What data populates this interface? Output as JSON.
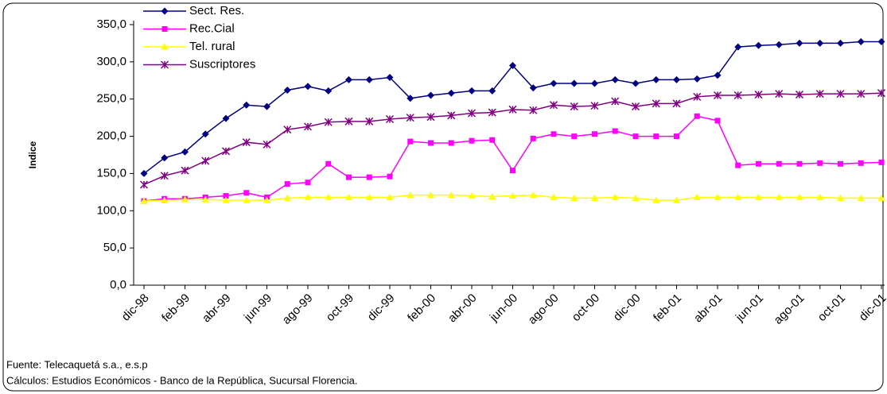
{
  "chart_data": {
    "type": "line",
    "y_label": "Indice",
    "categories": [
      "dic-98",
      null,
      "feb-99",
      null,
      "abr-99",
      null,
      "jun-99",
      null,
      "ago-99",
      null,
      "oct-99",
      null,
      "dic-99",
      null,
      "feb-00",
      null,
      "abr-00",
      null,
      "jun-00",
      null,
      "ago-00",
      null,
      "oct-00",
      null,
      "dic-00",
      null,
      "feb-01",
      null,
      "abr-01",
      null,
      "jun-01",
      null,
      "ago-01",
      null,
      "oct-01",
      null,
      "dic-01"
    ],
    "series": [
      {
        "name": "Sect. Res.",
        "color": "#000080",
        "marker": "diamond",
        "values": [
          150,
          171,
          179,
          203,
          224,
          242,
          240,
          262,
          267,
          261,
          276,
          276,
          279,
          251,
          255,
          258,
          261,
          261,
          295,
          265,
          271,
          271,
          271,
          276,
          271,
          276,
          276,
          277,
          282,
          320,
          322,
          323,
          325,
          325,
          325,
          327,
          327
        ]
      },
      {
        "name": "Rec.Cial",
        "color": "#ff00ff",
        "marker": "square",
        "values": [
          113,
          116,
          116,
          118,
          120,
          124,
          118,
          136,
          138,
          163,
          145,
          145,
          146,
          193,
          191,
          191,
          194,
          195,
          154,
          197,
          203,
          200,
          203,
          207,
          200,
          200,
          200,
          227,
          221,
          161,
          163,
          163,
          163,
          164,
          163,
          164,
          165
        ]
      },
      {
        "name": "Tel. rural",
        "color": "#ffff00",
        "marker": "triangle",
        "values": [
          113,
          114,
          115,
          115,
          114,
          114,
          114,
          117,
          118,
          118,
          118,
          118,
          118,
          121,
          121,
          121,
          120,
          119,
          120,
          121,
          118,
          117,
          117,
          118,
          117,
          114,
          114,
          118,
          118,
          118,
          118,
          118,
          118,
          118,
          117,
          117,
          117
        ]
      },
      {
        "name": "Suscriptores",
        "color": "#800080",
        "marker": "star",
        "values": [
          135,
          147,
          154,
          167,
          180,
          192,
          189,
          209,
          213,
          219,
          220,
          220,
          223,
          225,
          226,
          228,
          231,
          232,
          236,
          235,
          242,
          240,
          241,
          247,
          240,
          244,
          244,
          253,
          255,
          255,
          256,
          257,
          256,
          257,
          257,
          257,
          258
        ]
      }
    ],
    "ylim": [
      0,
      350
    ],
    "yticks": [
      {
        "value": 0,
        "label": "0,0"
      },
      {
        "value": 50,
        "label": "50,0"
      },
      {
        "value": 100,
        "label": "100,0"
      },
      {
        "value": 150,
        "label": "150,0"
      },
      {
        "value": 200,
        "label": "200,0"
      },
      {
        "value": 250,
        "label": "250,0"
      },
      {
        "value": 300,
        "label": "300,0"
      },
      {
        "value": 350,
        "label": "350,0"
      }
    ],
    "notes": [
      "Fuente: Telecaquetá s.a., e.s.p",
      "Cálculos:  Estudios Económicos - Banco de la República, Sucursal Florencia."
    ]
  }
}
